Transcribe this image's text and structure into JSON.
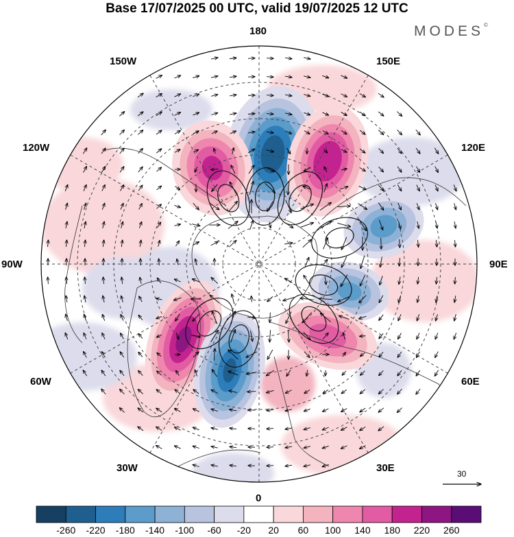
{
  "title": "Base 17/07/2025 00 UTC, valid 19/07/2025 12 UTC",
  "brand": "MODES",
  "brand_mark": "©",
  "longitude_labels": {
    "n180": "180",
    "s0": "0",
    "w90": "90W",
    "e90": "90E",
    "w150": "150W",
    "e150": "150E",
    "w120": "120W",
    "e120": "120E",
    "w60": "60W",
    "e60": "60E",
    "w30": "30W",
    "e30": "30E"
  },
  "reference_vector": {
    "label": "30"
  },
  "colorbar": {
    "labels": [
      "-260",
      "-220",
      "-180",
      "-140",
      "-100",
      "-60",
      "-20",
      "20",
      "60",
      "100",
      "140",
      "180",
      "220",
      "260"
    ],
    "colors": [
      "#163f62",
      "#1e5f8f",
      "#2c7dba",
      "#5b9ccb",
      "#8eb1d6",
      "#b7c3df",
      "#dcdcec",
      "#ffffff",
      "#f9d7da",
      "#f3b3bf",
      "#ee86ad",
      "#e25ca4",
      "#c2238e",
      "#8e1682",
      "#5a0d74"
    ]
  },
  "anomalies": [
    {
      "kind": "low",
      "lon": 175,
      "lat": 62,
      "level": "-220"
    },
    {
      "kind": "high",
      "lon": 148,
      "lat": 58,
      "level": "220"
    },
    {
      "kind": "high",
      "lon": -155,
      "lat": 60,
      "level": "180"
    },
    {
      "kind": "low",
      "lon": 108,
      "lat": 55,
      "level": "-140"
    },
    {
      "kind": "low",
      "lon": 72,
      "lat": 62,
      "level": "-140"
    },
    {
      "kind": "high",
      "lon": 45,
      "lat": 58,
      "level": "180"
    },
    {
      "kind": "high",
      "lon": -40,
      "lat": 58,
      "level": "260"
    },
    {
      "kind": "low",
      "lon": -15,
      "lat": 58,
      "level": "-220"
    }
  ]
}
